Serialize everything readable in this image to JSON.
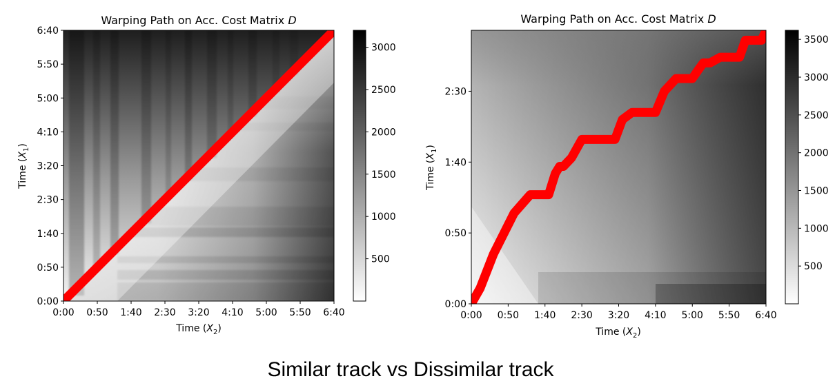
{
  "caption": "Similar track vs Dissimilar track",
  "colors": {
    "path": "#ff0000",
    "cmap_low": "#ffffff",
    "cmap_high": "#000000"
  },
  "chart_data": [
    {
      "type": "heatmap",
      "title_prefix": "Warping Path on Acc. Cost Matrix ",
      "title_var": "D",
      "xlabel_prefix": "Time (",
      "xlabel_var": "X",
      "xlabel_sub": "2",
      "xlabel_suffix": ")",
      "ylabel_prefix": "Time (",
      "ylabel_var": "X",
      "ylabel_sub": "1",
      "ylabel_suffix": ")",
      "x_ticks": [
        "0:00",
        "0:50",
        "1:40",
        "2:30",
        "3:20",
        "4:10",
        "5:00",
        "5:50",
        "6:40"
      ],
      "x_tick_seconds": [
        0,
        50,
        100,
        150,
        200,
        250,
        300,
        350,
        400
      ],
      "xlim_seconds": [
        0,
        400
      ],
      "y_ticks": [
        "0:00",
        "0:50",
        "1:40",
        "2:30",
        "3:20",
        "4:10",
        "5:00",
        "5:50",
        "6:40"
      ],
      "y_tick_seconds": [
        0,
        50,
        100,
        150,
        200,
        250,
        300,
        350,
        400
      ],
      "ylim_seconds": [
        0,
        400
      ],
      "colorbar": {
        "ticks": [
          500,
          1000,
          1500,
          2000,
          2500,
          3000
        ],
        "range": [
          0,
          3200
        ]
      },
      "warping_path": {
        "x": [
          0,
          400
        ],
        "y": [
          0,
          400
        ]
      }
    },
    {
      "type": "heatmap",
      "title_prefix": "Warping Path on Acc. Cost Matrix ",
      "title_var": "D",
      "xlabel_prefix": "Time (",
      "xlabel_var": "X",
      "xlabel_sub": "2",
      "xlabel_suffix": ")",
      "ylabel_prefix": "Time (",
      "ylabel_var": "X",
      "ylabel_sub": "1",
      "ylabel_suffix": ")",
      "x_ticks": [
        "0:00",
        "0:50",
        "1:40",
        "2:30",
        "3:20",
        "4:10",
        "5:00",
        "5:50",
        "6:40"
      ],
      "x_tick_seconds": [
        0,
        50,
        100,
        150,
        200,
        250,
        300,
        350,
        400
      ],
      "xlim_seconds": [
        0,
        400
      ],
      "y_ticks": [
        "0:00",
        "0:50",
        "1:40",
        "2:30"
      ],
      "y_tick_seconds": [
        0,
        50,
        100,
        150
      ],
      "ylim_seconds": [
        0,
        193
      ],
      "colorbar": {
        "ticks": [
          500,
          1000,
          1500,
          2000,
          2500,
          3000,
          3500
        ],
        "range": [
          0,
          3620
        ]
      },
      "warping_path": {
        "x": [
          0,
          12,
          30,
          58,
          80,
          105,
          114,
          120,
          125,
          136,
          150,
          165,
          195,
          205,
          218,
          250,
          262,
          278,
          300,
          308,
          315,
          324,
          338,
          364,
          372,
          394,
          400
        ],
        "y": [
          0,
          11,
          35,
          64,
          77,
          77,
          92,
          97,
          97,
          103,
          116,
          116,
          116,
          130,
          135,
          135,
          150,
          159,
          159,
          165,
          170,
          170,
          174,
          174,
          186,
          186,
          193
        ]
      }
    }
  ]
}
